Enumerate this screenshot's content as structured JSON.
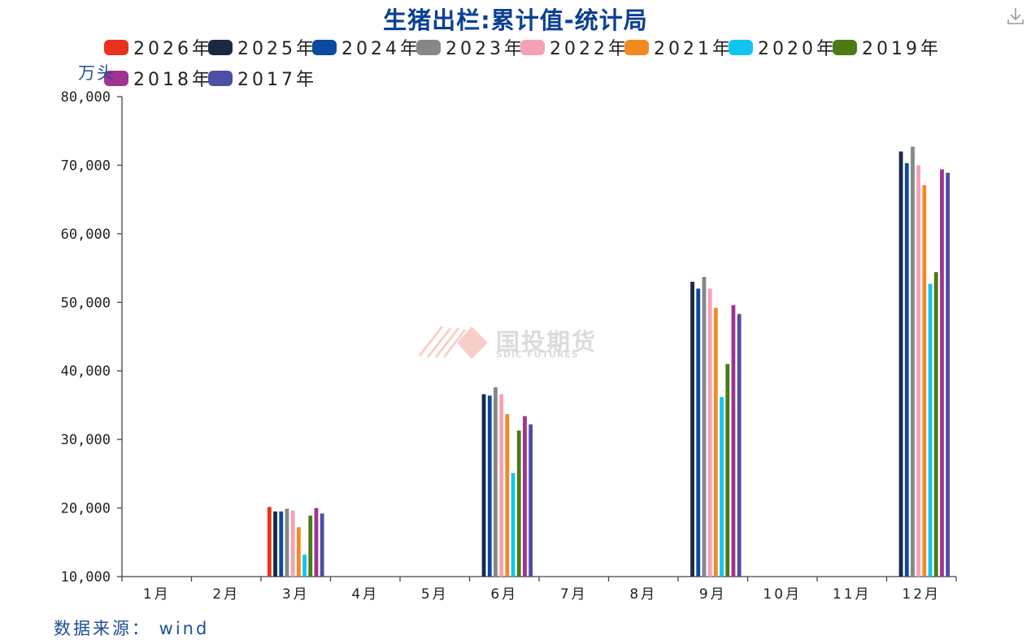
{
  "title": "生猪出栏:累计值-统计局",
  "unit_label": "万头",
  "source_label": "数据来源： wind",
  "watermark": {
    "name": "国投期货",
    "sub": "SDIC FUTURES"
  },
  "download_icon": "download-icon",
  "chart_data": {
    "type": "bar",
    "title": "生猪出栏:累计值-统计局",
    "ylabel": "万头",
    "ylim": [
      10000,
      80000
    ],
    "yticks": [
      10000,
      20000,
      30000,
      40000,
      50000,
      60000,
      70000,
      80000
    ],
    "ytick_labels": [
      "10,000",
      "20,000",
      "30,000",
      "40,000",
      "50,000",
      "60,000",
      "70,000",
      "80,000"
    ],
    "categories": [
      "1月",
      "2月",
      "3月",
      "4月",
      "5月",
      "6月",
      "7月",
      "8月",
      "9月",
      "10月",
      "11月",
      "12月"
    ],
    "legend_position": "top",
    "grid": false,
    "series": [
      {
        "name": "2026年",
        "color": "#e8321d",
        "values": [
          null,
          null,
          20150,
          null,
          null,
          null,
          null,
          null,
          null,
          null,
          null,
          null
        ]
      },
      {
        "name": "2025年",
        "color": "#1c2844",
        "values": [
          null,
          null,
          19500,
          null,
          null,
          36600,
          null,
          null,
          53000,
          null,
          null,
          72000
        ]
      },
      {
        "name": "2024年",
        "color": "#0b4aa0",
        "values": [
          null,
          null,
          19500,
          null,
          null,
          36400,
          null,
          null,
          52000,
          null,
          null,
          70300
        ]
      },
      {
        "name": "2023年",
        "color": "#878787",
        "values": [
          null,
          null,
          19900,
          null,
          null,
          37600,
          null,
          null,
          53700,
          null,
          null,
          72700
        ]
      },
      {
        "name": "2022年",
        "color": "#f6a0b4",
        "values": [
          null,
          null,
          19650,
          null,
          null,
          36600,
          null,
          null,
          52000,
          null,
          null,
          70000
        ]
      },
      {
        "name": "2021年",
        "color": "#f28a22",
        "values": [
          null,
          null,
          17200,
          null,
          null,
          33700,
          null,
          null,
          49200,
          null,
          null,
          67100
        ]
      },
      {
        "name": "2020年",
        "color": "#12c5ef",
        "values": [
          null,
          null,
          13200,
          null,
          null,
          25100,
          null,
          null,
          36200,
          null,
          null,
          52700
        ]
      },
      {
        "name": "2019年",
        "color": "#4a7b14",
        "values": [
          null,
          null,
          18900,
          null,
          null,
          31300,
          null,
          null,
          41000,
          null,
          null,
          54400
        ]
      },
      {
        "name": "2018年",
        "color": "#a0338f",
        "values": [
          null,
          null,
          20000,
          null,
          null,
          33400,
          null,
          null,
          49600,
          null,
          null,
          69400
        ]
      },
      {
        "name": "2017年",
        "color": "#4d4ea6",
        "values": [
          null,
          null,
          19200,
          null,
          null,
          32200,
          null,
          null,
          48300,
          null,
          null,
          68900
        ]
      }
    ]
  }
}
